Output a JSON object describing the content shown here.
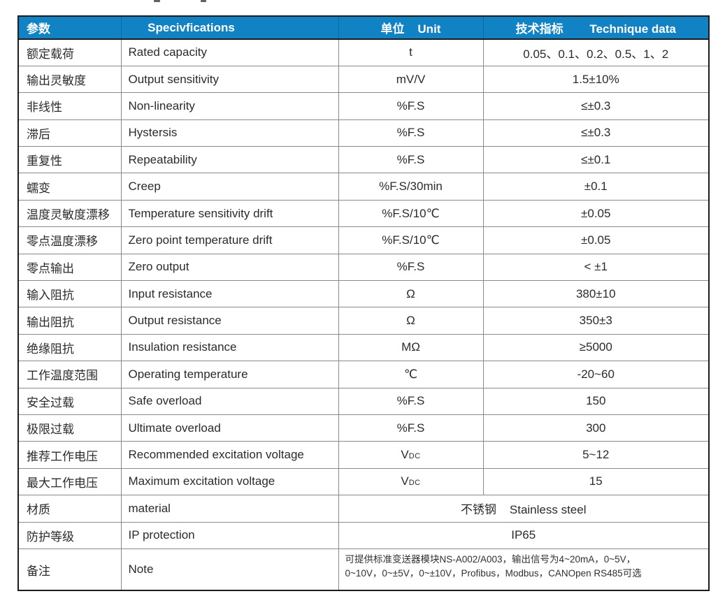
{
  "page": {
    "background": "#ffffff",
    "description": "Load cell technical specification table"
  },
  "colors": {
    "header_bg": "#1182c4",
    "header_text": "#ffffff",
    "body_text": "#2b2b2b",
    "grid_line": "#8a8a8a",
    "outer_border": "#1a1d20"
  },
  "table": {
    "headers": [
      {
        "key": "param",
        "label": "参数"
      },
      {
        "key": "spec",
        "label": "Specivfications"
      },
      {
        "key": "unit",
        "label": "单位    Unit"
      },
      {
        "key": "data",
        "label": "技术指标        Technique data"
      }
    ],
    "rows": [
      {
        "type": "normal",
        "param": "额定载荷",
        "spec": "Rated capacity",
        "unit": "t",
        "value": "0.05、0.1、0.2、0.5、1、2"
      },
      {
        "type": "normal",
        "param": "输出灵敏度",
        "spec": "Output sensitivity",
        "unit": "mV/V",
        "value": "1.5±10%"
      },
      {
        "type": "normal",
        "param": "非线性",
        "spec": "Non-linearity",
        "unit": "%F.S",
        "value": "≤±0.3"
      },
      {
        "type": "normal",
        "param": "滞后",
        "spec": "Hystersis",
        "unit": "%F.S",
        "value": "≤±0.3"
      },
      {
        "type": "normal",
        "param": "重复性",
        "spec": "Repeatability",
        "unit": "%F.S",
        "value": "≤±0.1"
      },
      {
        "type": "normal",
        "param": "蠕变",
        "spec": "Creep",
        "unit": "%F.S/30min",
        "value": "±0.1"
      },
      {
        "type": "normal",
        "param": "温度灵敏度漂移",
        "spec": "Temperature sensitivity drift",
        "unit": "%F.S/10℃",
        "value": "±0.05"
      },
      {
        "type": "normal",
        "param": "零点温度漂移",
        "spec": "Zero point temperature drift",
        "unit": "%F.S/10℃",
        "value": "±0.05"
      },
      {
        "type": "normal",
        "param": "零点输出",
        "spec": "Zero output",
        "unit": "%F.S",
        "value": "< ±1"
      },
      {
        "type": "normal",
        "param": "输入阻抗",
        "spec": "Input resistance",
        "unit": "Ω",
        "value": "380±10"
      },
      {
        "type": "normal",
        "param": "输出阻抗",
        "spec": "Output resistance",
        "unit": "Ω",
        "value": "350±3"
      },
      {
        "type": "normal",
        "param": "绝缘阻抗",
        "spec": "Insulation resistance",
        "unit": "MΩ",
        "value": "≥5000"
      },
      {
        "type": "normal",
        "param": "工作温度范围",
        "spec": "Operating temperature",
        "unit": "℃",
        "value": "-20~60"
      },
      {
        "type": "normal",
        "param": "安全过载",
        "spec": "Safe overload",
        "unit": "%F.S",
        "value": "150"
      },
      {
        "type": "normal",
        "param": "极限过载",
        "spec": "Ultimate overload",
        "unit": "%F.S",
        "value": "300"
      },
      {
        "type": "normal",
        "param": "推荐工作电压",
        "spec": "Recommended excitation voltage",
        "unit": "V",
        "unit_small": "DC",
        "value": "5~12"
      },
      {
        "type": "normal",
        "param": "最大工作电压",
        "spec": "Maximum excitation voltage",
        "unit": "V",
        "unit_small": "DC",
        "value": "15"
      },
      {
        "type": "merged",
        "param": "材质",
        "spec": "material",
        "value": "不锈钢    Stainless steel"
      },
      {
        "type": "merged",
        "param": "防护等级",
        "spec": "IP protection",
        "value": "IP65"
      },
      {
        "type": "note",
        "param": "备注",
        "spec": "Note",
        "lines": [
          "可提供标准变送器模块NS-A002/A003，输出信号为4~20mA，0~5V，",
          "0~10V，0~±5V，0~±10V，Profibus，Modbus，CANOpen  RS485可选"
        ]
      }
    ]
  }
}
